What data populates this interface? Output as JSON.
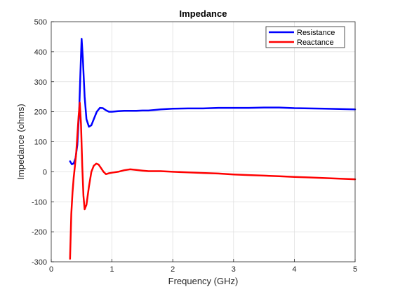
{
  "chart_data": {
    "type": "line",
    "title": "Impedance",
    "xlabel": "Frequency (GHz)",
    "ylabel": "Impedance (ohms)",
    "xlim": [
      0,
      5
    ],
    "ylim": [
      -300,
      500
    ],
    "xticks": [
      "0",
      "1",
      "2",
      "3",
      "4",
      "5"
    ],
    "yticks": [
      "-300",
      "-200",
      "-100",
      "0",
      "100",
      "200",
      "300",
      "400",
      "500"
    ],
    "grid": true,
    "legend": "top-right",
    "series": [
      {
        "name": "Resistance",
        "color": "#0000ff",
        "x": [
          0.31,
          0.34,
          0.37,
          0.4,
          0.43,
          0.46,
          0.48,
          0.5,
          0.52,
          0.55,
          0.58,
          0.62,
          0.66,
          0.7,
          0.75,
          0.8,
          0.85,
          0.9,
          0.95,
          1.0,
          1.1,
          1.2,
          1.3,
          1.4,
          1.5,
          1.6,
          1.7,
          1.8,
          1.9,
          2.0,
          2.25,
          2.5,
          2.75,
          3.0,
          3.25,
          3.5,
          3.75,
          4.0,
          4.25,
          4.5,
          4.75,
          5.0
        ],
        "y": [
          35,
          25,
          28,
          45,
          90,
          200,
          330,
          443,
          380,
          250,
          175,
          150,
          155,
          175,
          200,
          213,
          212,
          205,
          200,
          200,
          202,
          203,
          203,
          203,
          204,
          204,
          206,
          208,
          209,
          210,
          211,
          211,
          213,
          213,
          213,
          214,
          214,
          212,
          211,
          210,
          209,
          208
        ]
      },
      {
        "name": "Reactance",
        "color": "#ff0000",
        "x": [
          0.31,
          0.33,
          0.35,
          0.37,
          0.39,
          0.41,
          0.43,
          0.45,
          0.47,
          0.49,
          0.51,
          0.53,
          0.55,
          0.58,
          0.62,
          0.66,
          0.7,
          0.74,
          0.78,
          0.82,
          0.86,
          0.9,
          0.95,
          1.0,
          1.1,
          1.2,
          1.3,
          1.4,
          1.5,
          1.6,
          1.8,
          2.0,
          2.25,
          2.5,
          2.75,
          3.0,
          3.25,
          3.5,
          3.75,
          4.0,
          4.25,
          4.5,
          4.75,
          5.0
        ],
        "y": [
          -290,
          -140,
          -70,
          -20,
          20,
          60,
          120,
          185,
          230,
          160,
          20,
          -80,
          -125,
          -110,
          -50,
          0,
          20,
          27,
          24,
          12,
          0,
          -8,
          -5,
          -3,
          0,
          5,
          8,
          6,
          4,
          2,
          2,
          0,
          -2,
          -4,
          -6,
          -9,
          -11,
          -13,
          -15,
          -17,
          -19,
          -21,
          -23,
          -25
        ]
      }
    ]
  }
}
